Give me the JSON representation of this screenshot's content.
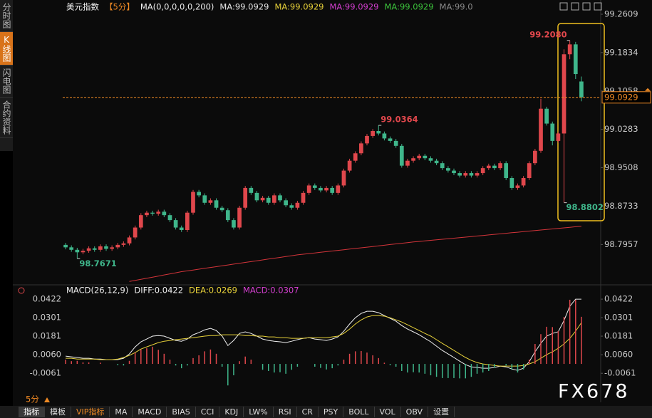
{
  "ui": {
    "sidebar": [
      "分时图",
      "K线图",
      "闪电图",
      "合约资料"
    ],
    "period_switch": "5分",
    "tabs": [
      "指标",
      "模板",
      "VIP指标",
      "MA",
      "MACD",
      "BIAS",
      "CCI",
      "KDJ",
      "LW%",
      "RSI",
      "CR",
      "PSY",
      "BOLL",
      "VOL",
      "OBV",
      "设置"
    ],
    "watermark": "FX678"
  },
  "chart_data": [
    {
      "type": "candlestick",
      "title": "美元指数",
      "period": "【5分】",
      "indicator": "MA(0,0,0,0,0,200)",
      "legend": [
        {
          "name": "MA:99.0929",
          "color": "#e8e8e8"
        },
        {
          "name": "MA:99.0929",
          "color": "#e8d23a"
        },
        {
          "name": "MA:99.0929",
          "color": "#d43fd0"
        },
        {
          "name": "MA:99.0929",
          "color": "#3cc43c"
        },
        {
          "name": "MA:99.0",
          "color": "#8a8a8a"
        }
      ],
      "up_color": "#e0474c",
      "down_color": "#3fb68b",
      "candles": [
        [
          98.795,
          98.799,
          98.786,
          98.79
        ],
        [
          98.79,
          98.794,
          98.781,
          98.785
        ],
        [
          98.785,
          98.789,
          98.7671,
          98.78
        ],
        [
          98.78,
          98.787,
          98.776,
          98.783
        ],
        [
          98.783,
          98.792,
          98.779,
          98.788
        ],
        [
          98.788,
          98.792,
          98.781,
          98.785
        ],
        [
          98.785,
          98.796,
          98.781,
          98.792
        ],
        [
          98.792,
          98.796,
          98.783,
          98.787
        ],
        [
          98.787,
          98.794,
          98.783,
          98.79
        ],
        [
          98.79,
          98.799,
          98.786,
          98.795
        ],
        [
          98.795,
          98.802,
          98.791,
          98.798
        ],
        [
          98.798,
          98.814,
          98.794,
          98.81
        ],
        [
          98.81,
          98.834,
          98.806,
          98.83
        ],
        [
          98.83,
          98.859,
          98.826,
          98.855
        ],
        [
          98.855,
          98.864,
          98.851,
          98.86
        ],
        [
          98.86,
          98.864,
          98.854,
          98.858
        ],
        [
          98.858,
          98.866,
          98.854,
          98.862
        ],
        [
          98.862,
          98.866,
          98.851,
          98.855
        ],
        [
          98.855,
          98.859,
          98.841,
          98.845
        ],
        [
          98.845,
          98.849,
          98.826,
          98.83
        ],
        [
          98.83,
          98.834,
          98.821,
          98.825
        ],
        [
          98.825,
          98.864,
          98.821,
          98.86
        ],
        [
          98.86,
          98.906,
          98.856,
          98.902
        ],
        [
          98.902,
          98.906,
          98.891,
          98.895
        ],
        [
          98.895,
          98.899,
          98.876,
          98.88
        ],
        [
          98.88,
          98.889,
          98.876,
          98.885
        ],
        [
          98.885,
          98.889,
          98.866,
          98.87
        ],
        [
          98.87,
          98.874,
          98.861,
          98.865
        ],
        [
          98.865,
          98.869,
          98.841,
          98.845
        ],
        [
          98.845,
          98.849,
          98.826,
          98.83
        ],
        [
          98.83,
          98.874,
          98.826,
          98.87
        ],
        [
          98.87,
          98.914,
          98.866,
          98.91
        ],
        [
          98.91,
          98.914,
          98.896,
          98.9
        ],
        [
          98.9,
          98.904,
          98.881,
          98.885
        ],
        [
          98.885,
          98.894,
          98.881,
          98.89
        ],
        [
          98.89,
          98.894,
          98.876,
          98.88
        ],
        [
          98.88,
          98.899,
          98.876,
          98.895
        ],
        [
          98.895,
          98.899,
          98.881,
          98.885
        ],
        [
          98.885,
          98.889,
          98.871,
          98.875
        ],
        [
          98.875,
          98.879,
          98.866,
          98.87
        ],
        [
          98.87,
          98.884,
          98.866,
          98.88
        ],
        [
          98.88,
          98.904,
          98.876,
          98.9
        ],
        [
          98.9,
          98.919,
          98.896,
          98.915
        ],
        [
          98.915,
          98.919,
          98.906,
          98.91
        ],
        [
          98.91,
          98.914,
          98.901,
          98.905
        ],
        [
          98.905,
          98.914,
          98.901,
          98.91
        ],
        [
          98.91,
          98.914,
          98.896,
          98.9
        ],
        [
          98.9,
          98.919,
          98.896,
          98.915
        ],
        [
          98.915,
          98.949,
          98.911,
          98.945
        ],
        [
          98.945,
          98.969,
          98.941,
          98.965
        ],
        [
          98.965,
          98.984,
          98.961,
          98.98
        ],
        [
          98.98,
          99.004,
          98.976,
          99.0
        ],
        [
          99.0,
          99.019,
          98.996,
          99.015
        ],
        [
          99.015,
          99.029,
          99.011,
          99.025
        ],
        [
          99.025,
          99.0364,
          99.016,
          99.02
        ],
        [
          99.02,
          99.024,
          99.006,
          99.01
        ],
        [
          99.01,
          99.014,
          99.001,
          99.005
        ],
        [
          99.005,
          99.009,
          98.991,
          98.995
        ],
        [
          98.995,
          98.999,
          98.951,
          98.955
        ],
        [
          98.955,
          98.969,
          98.951,
          98.965
        ],
        [
          98.965,
          98.974,
          98.961,
          98.97
        ],
        [
          98.97,
          98.979,
          98.966,
          98.975
        ],
        [
          98.975,
          98.979,
          98.966,
          98.97
        ],
        [
          98.97,
          98.974,
          98.961,
          98.965
        ],
        [
          98.965,
          98.969,
          98.956,
          98.96
        ],
        [
          98.96,
          98.964,
          98.946,
          98.95
        ],
        [
          98.95,
          98.954,
          98.941,
          98.945
        ],
        [
          98.945,
          98.949,
          98.936,
          98.94
        ],
        [
          98.94,
          98.944,
          98.931,
          98.935
        ],
        [
          98.935,
          98.944,
          98.931,
          98.94
        ],
        [
          98.94,
          98.944,
          98.931,
          98.935
        ],
        [
          98.935,
          98.944,
          98.931,
          98.94
        ],
        [
          98.94,
          98.954,
          98.936,
          98.95
        ],
        [
          98.95,
          98.959,
          98.946,
          98.955
        ],
        [
          98.955,
          98.959,
          98.946,
          98.95
        ],
        [
          98.95,
          98.964,
          98.946,
          98.96
        ],
        [
          98.96,
          98.964,
          98.926,
          98.93
        ],
        [
          98.93,
          98.934,
          98.906,
          98.91
        ],
        [
          98.91,
          98.919,
          98.906,
          98.915
        ],
        [
          98.915,
          98.934,
          98.911,
          98.93
        ],
        [
          98.93,
          98.964,
          98.926,
          98.96
        ],
        [
          98.96,
          98.989,
          98.956,
          98.985
        ],
        [
          98.985,
          99.09,
          98.981,
          99.07
        ],
        [
          99.07,
          99.074,
          99.036,
          99.04
        ],
        [
          99.04,
          99.044,
          98.996,
          99.005
        ],
        [
          99.005,
          99.024,
          99.001,
          99.02
        ],
        [
          99.02,
          99.19,
          98.8802,
          99.18
        ],
        [
          99.18,
          99.208,
          99.17,
          99.2
        ],
        [
          99.2,
          99.205,
          99.13,
          99.14
        ],
        [
          99.125,
          99.135,
          99.085,
          99.0929
        ]
      ],
      "ma_line": {
        "color": "#d2343a",
        "values": [
          null,
          null,
          null,
          null,
          null,
          null,
          null,
          null,
          null,
          null,
          null,
          98.721,
          98.7232,
          98.7254,
          98.7276,
          98.7298,
          98.732,
          98.7342,
          98.7364,
          98.7386,
          98.7408,
          98.7425,
          98.7442,
          98.7459,
          98.7476,
          98.7493,
          98.751,
          98.7527,
          98.7544,
          98.7561,
          98.7578,
          98.7595,
          98.7612,
          98.7629,
          98.7646,
          98.7663,
          98.768,
          98.7697,
          98.7714,
          98.7731,
          98.7748,
          98.7761,
          98.7774,
          98.7787,
          98.78,
          98.7813,
          98.7826,
          98.7839,
          98.7852,
          98.7865,
          98.7878,
          98.7891,
          98.7904,
          98.7917,
          98.793,
          98.7943,
          98.7956,
          98.7969,
          98.7982,
          98.7995,
          98.8008,
          98.8019,
          98.803,
          98.8041,
          98.8052,
          98.8063,
          98.8074,
          98.8085,
          98.8096,
          98.8107,
          98.8118,
          98.8129,
          98.814,
          98.8151,
          98.8162,
          98.8173,
          98.8184,
          98.8195,
          98.8206,
          98.8217,
          98.8228,
          98.8239,
          98.825,
          98.8261,
          98.8272,
          98.8283,
          98.8294,
          98.8305,
          98.8316,
          98.8327
        ]
      },
      "ylim": [
        98.72,
        99.2724
      ],
      "yticks": [
        98.7957,
        98.8733,
        98.9508,
        99.0283,
        99.1058,
        99.1834,
        99.2609
      ],
      "last_price": 99.0929,
      "last_price_color": "#f08a24",
      "annotations": [
        {
          "value": 99.208,
          "label": "99.2080",
          "color": "#e0474c"
        },
        {
          "value": 99.0364,
          "label": "99.0364",
          "color": "#e0474c"
        },
        {
          "value": 98.7671,
          "label": "98.7671",
          "color": "#3fb68b"
        },
        {
          "value": 98.8802,
          "label": "98.8802",
          "color": "#3fb68b"
        }
      ]
    },
    {
      "type": "macd",
      "title": "MACD(26,12,9)",
      "series": [
        {
          "name": "DIFF:0.0422",
          "type": "line",
          "color": "#f0f0f0",
          "values": [
            0.0051,
            0.0046,
            0.0042,
            0.0037,
            0.0037,
            0.0032,
            0.0032,
            0.0028,
            0.0028,
            0.0028,
            0.0037,
            0.0065,
            0.0111,
            0.0144,
            0.0162,
            0.0181,
            0.0185,
            0.0181,
            0.0167,
            0.0153,
            0.0148,
            0.0162,
            0.019,
            0.0204,
            0.0222,
            0.0232,
            0.0218,
            0.0181,
            0.012,
            0.0153,
            0.0199,
            0.0209,
            0.0199,
            0.0181,
            0.0162,
            0.0153,
            0.0148,
            0.0144,
            0.0139,
            0.0148,
            0.0158,
            0.0167,
            0.0171,
            0.0162,
            0.0158,
            0.0153,
            0.0162,
            0.0176,
            0.0213,
            0.026,
            0.0301,
            0.0329,
            0.0343,
            0.0343,
            0.0334,
            0.0315,
            0.0297,
            0.0278,
            0.025,
            0.0227,
            0.0209,
            0.019,
            0.0167,
            0.0144,
            0.0116,
            0.0088,
            0.0065,
            0.0042,
            0.0018,
            -0.0005,
            -0.0019,
            -0.0023,
            -0.0028,
            -0.0028,
            -0.0023,
            -0.0014,
            -0.0019,
            -0.0033,
            -0.0042,
            -0.0028,
            0.0014,
            0.0079,
            0.0134,
            0.0181,
            0.0199,
            0.0209,
            0.0283,
            0.0376,
            0.0422,
            0.0422
          ]
        },
        {
          "name": "DEA:0.0269",
          "type": "line",
          "color": "#e8d23a",
          "values": [
            0.0037,
            0.0037,
            0.0032,
            0.0032,
            0.0032,
            0.0032,
            0.0028,
            0.0028,
            0.0028,
            0.0032,
            0.0042,
            0.0055,
            0.0074,
            0.0097,
            0.0111,
            0.0125,
            0.0139,
            0.0148,
            0.0153,
            0.0158,
            0.0162,
            0.0167,
            0.0171,
            0.0176,
            0.0181,
            0.0185,
            0.0185,
            0.019,
            0.019,
            0.019,
            0.019,
            0.0185,
            0.0185,
            0.0181,
            0.0181,
            0.0176,
            0.0176,
            0.0171,
            0.0171,
            0.0167,
            0.0167,
            0.0167,
            0.0171,
            0.0171,
            0.0171,
            0.0171,
            0.0176,
            0.0181,
            0.0199,
            0.0227,
            0.026,
            0.0287,
            0.0306,
            0.0315,
            0.0315,
            0.0311,
            0.0301,
            0.0287,
            0.0273,
            0.0255,
            0.0236,
            0.0218,
            0.0199,
            0.0181,
            0.0158,
            0.0134,
            0.0111,
            0.0088,
            0.0065,
            0.0042,
            0.0023,
            0.0009,
            0.0,
            -0.0005,
            -0.001,
            -0.0014,
            -0.0014,
            -0.0014,
            -0.0014,
            -0.001,
            0.0,
            0.0014,
            0.0037,
            0.006,
            0.0079,
            0.0102,
            0.013,
            0.0167,
            0.0213,
            0.0269
          ]
        },
        {
          "name": "MACD:0.0307",
          "type": "bar",
          "color": "#d43fd0",
          "positive_color": "#e0474c",
          "negative_color": "#3fb68b",
          "values": [
            0.0028,
            0.0018,
            0.002,
            0.001,
            0.001,
            0,
            0.0008,
            0,
            0,
            -0.0008,
            -0.001,
            0.002,
            0.0074,
            0.0094,
            0.0102,
            0.0112,
            0.0092,
            0.0066,
            0.0028,
            -0.001,
            -0.0028,
            -0.001,
            0.0038,
            0.0056,
            0.0082,
            0.0094,
            0.0066,
            -0.0018,
            -0.014,
            -0.0074,
            0.0018,
            0.0048,
            0.0028,
            0,
            -0.0038,
            -0.0046,
            -0.0056,
            -0.0054,
            -0.0064,
            -0.0038,
            -0.0018,
            0,
            0,
            -0.0018,
            -0.0026,
            -0.0036,
            -0.0028,
            -0.001,
            0.0028,
            0.0066,
            0.0082,
            0.0084,
            0.0074,
            0.0056,
            0.0038,
            0.0008,
            -0.0008,
            -0.0018,
            -0.0046,
            -0.0056,
            -0.0054,
            -0.0056,
            -0.0064,
            -0.0074,
            -0.0084,
            -0.0092,
            -0.0092,
            -0.0092,
            -0.0094,
            -0.0094,
            -0.0084,
            -0.0064,
            -0.0056,
            -0.0046,
            -0.0026,
            0,
            -0.001,
            -0.0038,
            -0.0056,
            -0.0036,
            0.0028,
            0.013,
            0.0194,
            0.0242,
            0.024,
            0.0214,
            0.0306,
            0.0418,
            0.0418,
            0.0307
          ]
        }
      ],
      "ylim": [
        -0.0227,
        0.0492
      ],
      "yticks": [
        -0.0061,
        {
          "value": 0.006,
          "label": "0.0060"
        },
        0.0181,
        0.0301,
        0.0422
      ]
    }
  ]
}
